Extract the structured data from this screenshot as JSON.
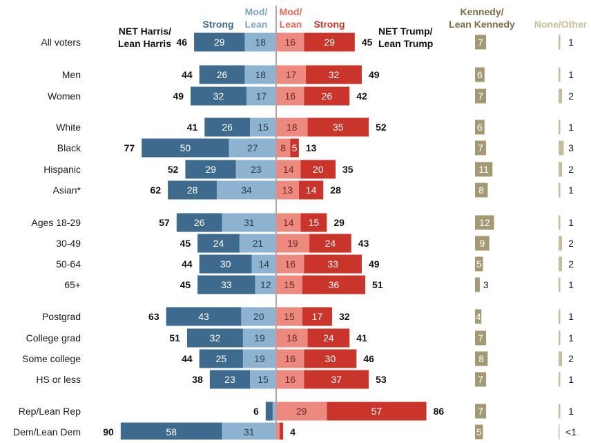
{
  "chart_data": {
    "type": "bar",
    "orientation": "horizontal",
    "layout": "diverging",
    "headers": {
      "harris_strong": "Strong",
      "harris_mod_line1": "Mod/",
      "harris_mod_line2": "Lean",
      "trump_mod_line1": "Mod/",
      "trump_mod_line2": "Lean",
      "trump_strong": "Strong",
      "net_harris_line1": "NET Harris/",
      "net_harris_line2": "Lean Harris",
      "net_trump_line1": "NET Trump/",
      "net_trump_line2": "Lean Trump",
      "kennedy_line1": "Kennedy/",
      "kennedy_line2": "Lean Kennedy",
      "none_other": "None/Other"
    },
    "colors": {
      "harris_strong": "#3e6a8e",
      "harris_lean": "#8eb3d0",
      "trump_lean": "#ec8a7f",
      "trump_strong": "#c9352b",
      "kennedy": "#a39a74",
      "kennedy_header": "#7a6c43",
      "none_other": "#c5bd9c",
      "none_header": "#c8be94",
      "harris_header_strong": "#3e6a8e",
      "harris_header_lean": "#7ea4c3",
      "trump_header_lean": "#e0685d",
      "trump_header_strong": "#c9352b"
    },
    "rows": [
      {
        "label": "All voters",
        "harris_strong": 29,
        "harris_lean": 18,
        "harris_net": "46",
        "trump_lean": 16,
        "trump_strong": 29,
        "trump_net": "45",
        "kennedy": 7,
        "none": 1,
        "none_label": "1"
      },
      {
        "label": "Men",
        "harris_strong": 26,
        "harris_lean": 18,
        "harris_net": "44",
        "trump_lean": 17,
        "trump_strong": 32,
        "trump_net": "49",
        "kennedy": 6,
        "none": 1,
        "none_label": "1"
      },
      {
        "label": "Women",
        "harris_strong": 32,
        "harris_lean": 17,
        "harris_net": "49",
        "trump_lean": 16,
        "trump_strong": 26,
        "trump_net": "42",
        "kennedy": 7,
        "none": 2,
        "none_label": "2"
      },
      {
        "label": "White",
        "harris_strong": 26,
        "harris_lean": 15,
        "harris_net": "41",
        "trump_lean": 18,
        "trump_strong": 35,
        "trump_net": "52",
        "kennedy": 6,
        "none": 1,
        "none_label": "1"
      },
      {
        "label": "Black",
        "harris_strong": 50,
        "harris_lean": 27,
        "harris_net": "77",
        "trump_lean": 8,
        "trump_strong": 5,
        "trump_net": "13",
        "kennedy": 7,
        "none": 3,
        "none_label": "3"
      },
      {
        "label": "Hispanic",
        "harris_strong": 29,
        "harris_lean": 23,
        "harris_net": "52",
        "trump_lean": 14,
        "trump_strong": 20,
        "trump_net": "35",
        "kennedy": 11,
        "none": 2,
        "none_label": "2"
      },
      {
        "label": "Asian*",
        "harris_strong": 28,
        "harris_lean": 34,
        "harris_net": "62",
        "trump_lean": 13,
        "trump_strong": 14,
        "trump_net": "28",
        "kennedy": 8,
        "none": 1,
        "none_label": "1"
      },
      {
        "label": "Ages 18-29",
        "harris_strong": 26,
        "harris_lean": 31,
        "harris_net": "57",
        "trump_lean": 14,
        "trump_strong": 15,
        "trump_net": "29",
        "kennedy": 12,
        "none": 1,
        "none_label": "1"
      },
      {
        "label": "30-49",
        "harris_strong": 24,
        "harris_lean": 21,
        "harris_net": "45",
        "trump_lean": 19,
        "trump_strong": 24,
        "trump_net": "43",
        "kennedy": 9,
        "none": 2,
        "none_label": "2"
      },
      {
        "label": "50-64",
        "harris_strong": 30,
        "harris_lean": 14,
        "harris_net": "44",
        "trump_lean": 16,
        "trump_strong": 33,
        "trump_net": "49",
        "kennedy": 5,
        "none": 2,
        "none_label": "2"
      },
      {
        "label": "65+",
        "harris_strong": 33,
        "harris_lean": 12,
        "harris_net": "45",
        "trump_lean": 15,
        "trump_strong": 36,
        "trump_net": "51",
        "kennedy": 3,
        "none": 1,
        "none_label": "1"
      },
      {
        "label": "Postgrad",
        "harris_strong": 43,
        "harris_lean": 20,
        "harris_net": "63",
        "trump_lean": 15,
        "trump_strong": 17,
        "trump_net": "32",
        "kennedy": 4,
        "none": 1,
        "none_label": "1"
      },
      {
        "label": "College grad",
        "harris_strong": 32,
        "harris_lean": 19,
        "harris_net": "51",
        "trump_lean": 18,
        "trump_strong": 24,
        "trump_net": "41",
        "kennedy": 7,
        "none": 1,
        "none_label": "1"
      },
      {
        "label": "Some college",
        "harris_strong": 25,
        "harris_lean": 19,
        "harris_net": "44",
        "trump_lean": 16,
        "trump_strong": 30,
        "trump_net": "46",
        "kennedy": 8,
        "none": 2,
        "none_label": "2"
      },
      {
        "label": "HS or less",
        "harris_strong": 23,
        "harris_lean": 15,
        "harris_net": "38",
        "trump_lean": 16,
        "trump_strong": 37,
        "trump_net": "53",
        "kennedy": 7,
        "none": 1,
        "none_label": "1"
      },
      {
        "label": "Rep/Lean Rep",
        "harris_strong": 4,
        "harris_lean": 2,
        "harris_net": "6",
        "trump_lean": 29,
        "trump_strong": 57,
        "trump_net": "86",
        "kennedy": 7,
        "none": 1,
        "none_label": "1"
      },
      {
        "label": "Dem/Lean Dem",
        "harris_strong": 58,
        "harris_lean": 31,
        "harris_net": "90",
        "trump_lean": 2,
        "trump_strong": 2,
        "trump_net": "4",
        "kennedy": 5,
        "none": 0.5,
        "none_label": "<1"
      }
    ]
  }
}
